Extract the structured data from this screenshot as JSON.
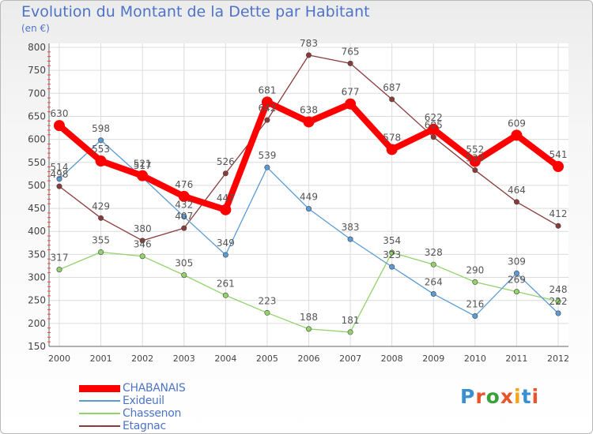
{
  "title": "Evolution du Montant de la Dette par Habitant",
  "subtitle": "(en €)",
  "logo": {
    "text": "Proxiti",
    "colors": [
      "#3a8fd1",
      "#e8552b",
      "#3aa03a",
      "#e8552b",
      "#f2a51b",
      "#3a8fd1",
      "#e8552b"
    ]
  },
  "chart_data": {
    "type": "line",
    "x": [
      2000,
      2001,
      2002,
      2003,
      2004,
      2005,
      2006,
      2007,
      2008,
      2009,
      2010,
      2011,
      2012
    ],
    "ylim": [
      150,
      800
    ],
    "yticks": [
      150,
      200,
      250,
      300,
      350,
      400,
      450,
      500,
      550,
      600,
      650,
      700,
      750,
      800
    ],
    "grid": true,
    "legend_position": "bottom-left",
    "series": [
      {
        "name": "CHABANAIS",
        "color": "#ff0000",
        "values": [
          630,
          553,
          521,
          476,
          447,
          681,
          638,
          677,
          578,
          622,
          552,
          609,
          541
        ]
      },
      {
        "name": "Exideuil",
        "color": "#5b9bd5",
        "values": [
          514,
          598,
          517,
          432,
          349,
          539,
          449,
          383,
          323,
          264,
          216,
          309,
          222
        ]
      },
      {
        "name": "Chassenon",
        "color": "#92d36a",
        "values": [
          317,
          355,
          346,
          305,
          261,
          223,
          188,
          181,
          354,
          328,
          290,
          269,
          248
        ]
      },
      {
        "name": "Etagnac",
        "color": "#8b3a3a",
        "values": [
          498,
          429,
          380,
          407,
          526,
          642,
          783,
          765,
          687,
          605,
          533,
          464,
          412
        ]
      }
    ]
  }
}
